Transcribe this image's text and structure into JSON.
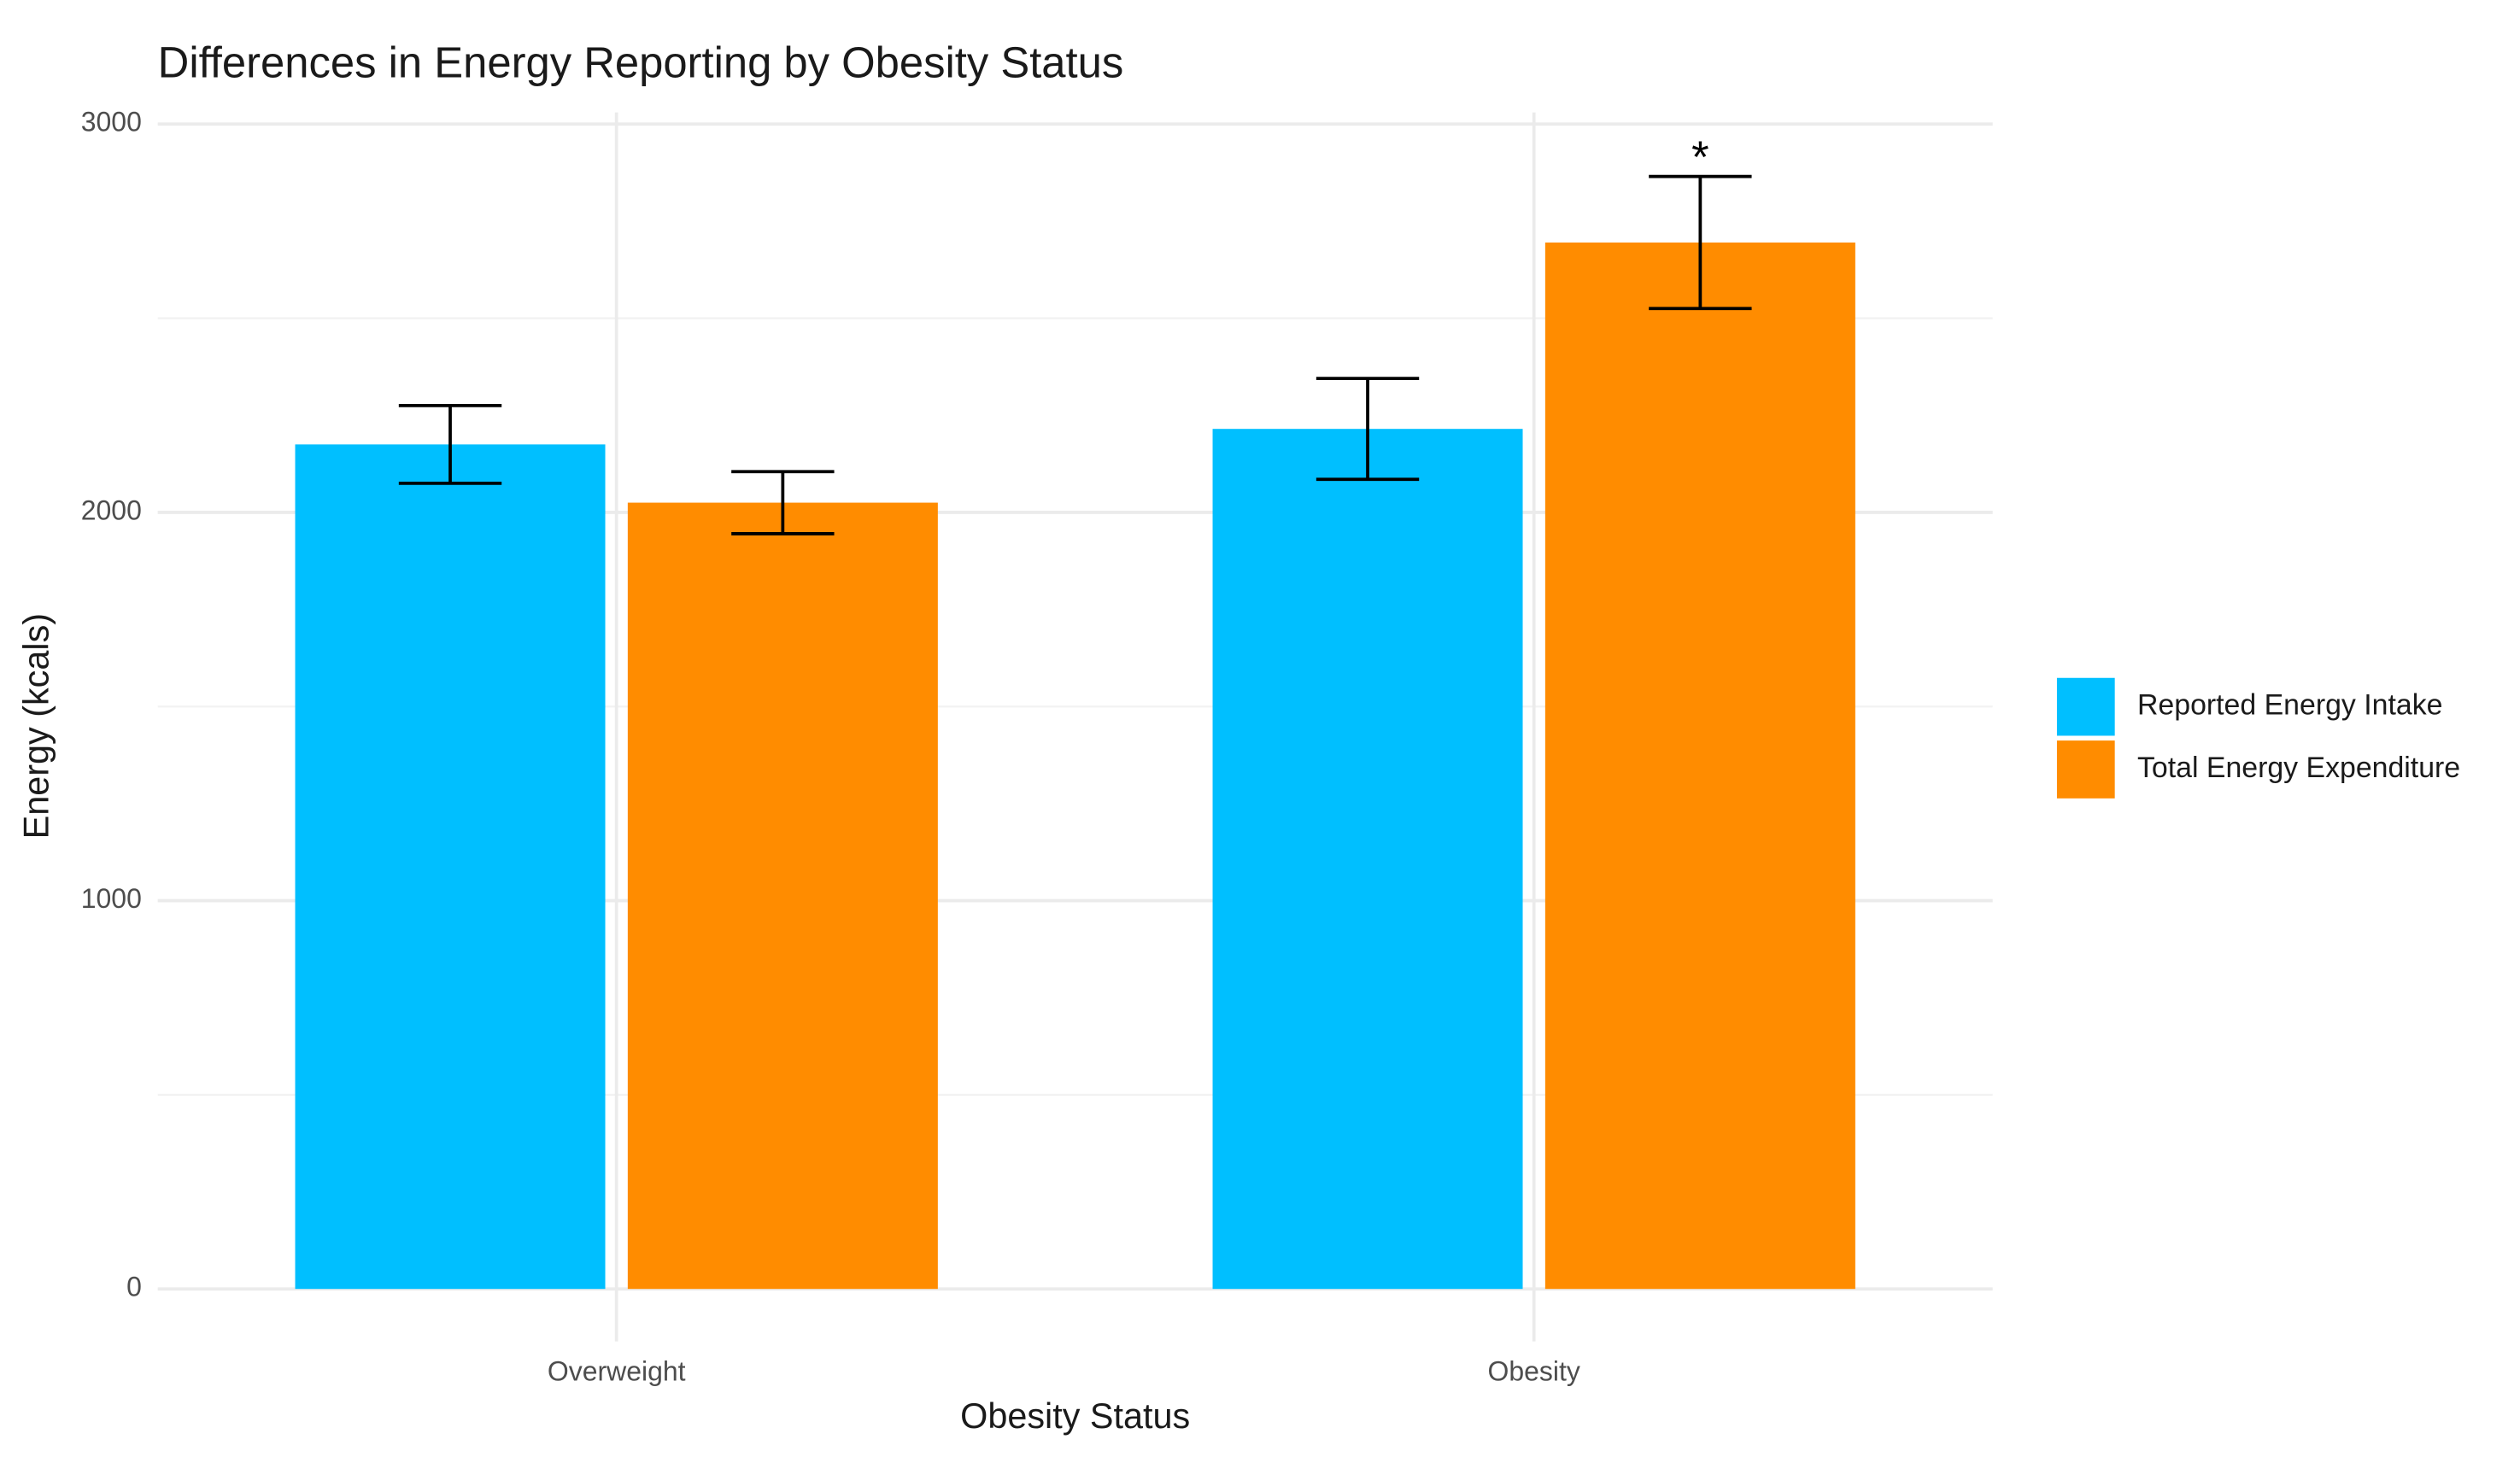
{
  "chart_data": {
    "type": "bar",
    "title": "Differences in Energy Reporting by Obesity Status",
    "x_label": "Obesity Status",
    "y_label": "Energy (kcals)",
    "categories": [
      "Overweight",
      "Obesity"
    ],
    "series": [
      {
        "name": "Reported Energy Intake",
        "color": "#00bfff",
        "values": [
          2175,
          2215
        ],
        "errors": [
          100,
          130
        ],
        "significance": [
          null,
          null
        ]
      },
      {
        "name": "Total Energy Expenditure",
        "color": "#ff8c00",
        "values": [
          2025,
          2695
        ],
        "errors": [
          80,
          170
        ],
        "significance": [
          null,
          "*"
        ]
      }
    ],
    "ylim": [
      -135,
      3030
    ],
    "yticks": [
      0,
      1000,
      2000,
      3000
    ],
    "y_minor_ticks": [
      500,
      1500,
      2500
    ],
    "grid": true,
    "legend": "right"
  }
}
